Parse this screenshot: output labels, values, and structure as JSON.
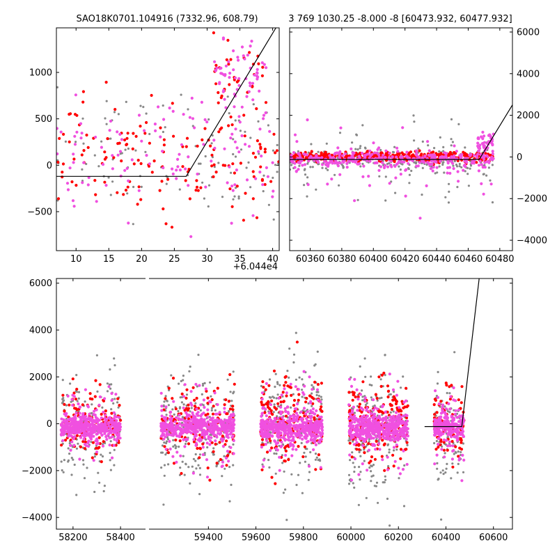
{
  "colors": {
    "gray": "#888888",
    "red": "#ff0000",
    "magenta": "#f050e0",
    "line": "#000000"
  },
  "chart_data": [
    {
      "id": "top-left",
      "type": "scatter",
      "title": "SAO18K0701.104916 (7332.96, 608.79)",
      "xlim": [
        7,
        41
      ],
      "ylim": [
        -920,
        1480
      ],
      "x_offset_label": "+6.044e4",
      "xticks": [
        {
          "value": 10,
          "label": "10"
        },
        {
          "value": 15,
          "label": "15"
        },
        {
          "value": 20,
          "label": "20"
        },
        {
          "value": 25,
          "label": "25"
        },
        {
          "value": 30,
          "label": "30"
        },
        {
          "value": 35,
          "label": "35"
        },
        {
          "value": 40,
          "label": "40"
        }
      ],
      "yticks": [
        {
          "value": -500,
          "label": "−500"
        },
        {
          "value": 0,
          "label": "0"
        },
        {
          "value": 500,
          "label": "500"
        },
        {
          "value": 1000,
          "label": "1000"
        }
      ],
      "y_axis_side": "left",
      "model_line": [
        [
          7,
          -120
        ],
        [
          26.8,
          -120
        ],
        [
          40.5,
          1480
        ]
      ],
      "point_clusters": [
        {
          "x": [
            7,
            41
          ],
          "y_center": 150,
          "y_spread": 650,
          "count": 110,
          "series": "gray"
        },
        {
          "x": [
            7,
            41
          ],
          "y_center": 100,
          "y_spread": 600,
          "count": 120,
          "series": "magenta"
        },
        {
          "x": [
            7,
            41
          ],
          "y_center": 100,
          "y_spread": 600,
          "count": 150,
          "series": "red"
        },
        {
          "x": [
            31,
            39
          ],
          "y_center": 950,
          "y_spread": 350,
          "count": 60,
          "series": "magenta"
        },
        {
          "x": [
            31,
            39
          ],
          "y_center": 950,
          "y_spread": 350,
          "count": 30,
          "series": "red"
        }
      ]
    },
    {
      "id": "top-right",
      "type": "scatter",
      "title": "3 769 1030.25 -8.000 -8 [60473.932, 60477.932]",
      "xlim": [
        60347,
        60488
      ],
      "ylim": [
        -4500,
        6200
      ],
      "xticks": [
        {
          "value": 60360,
          "label": "60360"
        },
        {
          "value": 60380,
          "label": "60380"
        },
        {
          "value": 60400,
          "label": "60400"
        },
        {
          "value": 60420,
          "label": "60420"
        },
        {
          "value": 60440,
          "label": "60440"
        },
        {
          "value": 60460,
          "label": "60460"
        },
        {
          "value": 60480,
          "label": "60480"
        }
      ],
      "yticks": [
        {
          "value": -4000,
          "label": "−4000"
        },
        {
          "value": -2000,
          "label": "−2000"
        },
        {
          "value": 0,
          "label": "0"
        },
        {
          "value": 2000,
          "label": "2000"
        },
        {
          "value": 4000,
          "label": "4000"
        },
        {
          "value": 6000,
          "label": "6000"
        }
      ],
      "y_axis_side": "right",
      "model_line": [
        [
          60347,
          -120
        ],
        [
          60467,
          -120
        ],
        [
          60488,
          2500
        ]
      ],
      "point_clusters": [
        {
          "x": [
            60347,
            60476
          ],
          "y_center": -150,
          "y_spread": 500,
          "count": 260,
          "series": "gray"
        },
        {
          "x": [
            60347,
            60476
          ],
          "y_center": -100,
          "y_spread": 350,
          "count": 300,
          "series": "magenta"
        },
        {
          "x": [
            60347,
            60476
          ],
          "y_center": 0,
          "y_spread": 250,
          "count": 360,
          "series": "red"
        },
        {
          "x": [
            60347,
            60476
          ],
          "y_center": -300,
          "y_spread": 1800,
          "count": 90,
          "series": "gray"
        },
        {
          "x": [
            60347,
            60476
          ],
          "y_center": -300,
          "y_spread": 1800,
          "count": 60,
          "series": "magenta"
        },
        {
          "x": [
            60466,
            60476
          ],
          "y_center": 600,
          "y_spread": 500,
          "count": 40,
          "series": "magenta"
        }
      ]
    },
    {
      "id": "bottom",
      "type": "scatter",
      "title": "",
      "xlim": [
        58130,
        60680
      ],
      "ylim": [
        -4500,
        6200
      ],
      "axis_break": {
        "left_end": 58520,
        "right_start": 59150
      },
      "xticks": [
        {
          "value": 58200,
          "label": "58200"
        },
        {
          "value": 58400,
          "label": "58400"
        },
        {
          "value": 59400,
          "label": "59400"
        },
        {
          "value": 59600,
          "label": "59600"
        },
        {
          "value": 59800,
          "label": "59800"
        },
        {
          "value": 60000,
          "label": "60000"
        },
        {
          "value": 60200,
          "label": "60200"
        },
        {
          "value": 60400,
          "label": "60400"
        },
        {
          "value": 60600,
          "label": "60600"
        }
      ],
      "yticks": [
        {
          "value": -4000,
          "label": "−4000"
        },
        {
          "value": -2000,
          "label": "−2000"
        },
        {
          "value": 0,
          "label": "0"
        },
        {
          "value": 2000,
          "label": "2000"
        },
        {
          "value": 4000,
          "label": "4000"
        },
        {
          "value": 6000,
          "label": "6000"
        }
      ],
      "y_axis_side": "left",
      "model_line": [
        [
          60310,
          -120
        ],
        [
          60467,
          -120
        ],
        [
          60540,
          6200
        ]
      ],
      "point_clusters": [
        {
          "x": [
            58150,
            58400
          ],
          "y_center": -200,
          "y_spread": 2300,
          "count": 160,
          "series": "gray"
        },
        {
          "x": [
            58150,
            58400
          ],
          "y_center": -100,
          "y_spread": 1500,
          "count": 90,
          "series": "magenta"
        },
        {
          "x": [
            58150,
            58400
          ],
          "y_center": 0,
          "y_spread": 1400,
          "count": 140,
          "series": "red"
        },
        {
          "x": [
            58150,
            58400
          ],
          "y_center": -150,
          "y_spread": 500,
          "count": 380,
          "series": "magenta"
        },
        {
          "x": [
            59200,
            59510
          ],
          "y_center": -300,
          "y_spread": 2600,
          "count": 220,
          "series": "gray"
        },
        {
          "x": [
            59200,
            59510
          ],
          "y_center": 0,
          "y_spread": 1600,
          "count": 150,
          "series": "red"
        },
        {
          "x": [
            59200,
            59510
          ],
          "y_center": -100,
          "y_spread": 1700,
          "count": 110,
          "series": "magenta"
        },
        {
          "x": [
            59200,
            59510
          ],
          "y_center": -150,
          "y_spread": 500,
          "count": 420,
          "series": "magenta"
        },
        {
          "x": [
            59620,
            59880
          ],
          "y_center": -200,
          "y_spread": 2600,
          "count": 200,
          "series": "gray"
        },
        {
          "x": [
            59620,
            59880
          ],
          "y_center": 100,
          "y_spread": 1900,
          "count": 170,
          "series": "red"
        },
        {
          "x": [
            59620,
            59880
          ],
          "y_center": -100,
          "y_spread": 1800,
          "count": 110,
          "series": "magenta"
        },
        {
          "x": [
            59620,
            59880
          ],
          "y_center": -200,
          "y_spread": 550,
          "count": 420,
          "series": "magenta"
        },
        {
          "x": [
            59990,
            60240
          ],
          "y_center": -200,
          "y_spread": 2500,
          "count": 200,
          "series": "gray"
        },
        {
          "x": [
            59990,
            60240
          ],
          "y_center": 50,
          "y_spread": 1700,
          "count": 170,
          "series": "red"
        },
        {
          "x": [
            59990,
            60240
          ],
          "y_center": -100,
          "y_spread": 1800,
          "count": 110,
          "series": "magenta"
        },
        {
          "x": [
            59990,
            60240
          ],
          "y_center": -200,
          "y_spread": 550,
          "count": 420,
          "series": "magenta"
        },
        {
          "x": [
            60350,
            60476
          ],
          "y_center": -200,
          "y_spread": 2300,
          "count": 110,
          "series": "gray"
        },
        {
          "x": [
            60350,
            60476
          ],
          "y_center": 0,
          "y_spread": 1500,
          "count": 90,
          "series": "red"
        },
        {
          "x": [
            60350,
            60476
          ],
          "y_center": -100,
          "y_spread": 1600,
          "count": 70,
          "series": "magenta"
        },
        {
          "x": [
            60350,
            60476
          ],
          "y_center": -150,
          "y_spread": 450,
          "count": 200,
          "series": "magenta"
        }
      ]
    }
  ]
}
